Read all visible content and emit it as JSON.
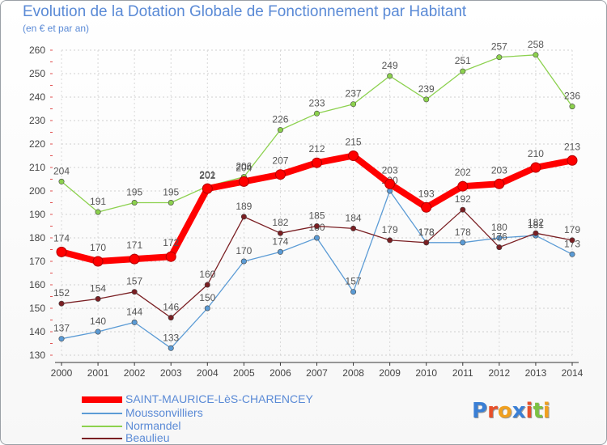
{
  "title": "Evolution de la Dotation Globale de Fonctionnement par Habitant",
  "subtitle": "(en € et par an)",
  "logo": {
    "text": "Proxiti",
    "letters": [
      {
        "ch": "P",
        "color": "#3a7fd5"
      },
      {
        "ch": "r",
        "color": "#e8502a"
      },
      {
        "ch": "o",
        "color": "#f0a020"
      },
      {
        "ch": "x",
        "color": "#3a7fd5"
      },
      {
        "ch": "i",
        "color": "#e8502a"
      },
      {
        "ch": "t",
        "color": "#7cc243"
      },
      {
        "ch": "i",
        "color": "#f0a020"
      }
    ]
  },
  "chart_data": {
    "type": "line",
    "x": [
      "2000",
      "2001",
      "2002",
      "2003",
      "2004",
      "2005",
      "2006",
      "2007",
      "2008",
      "2009",
      "2010",
      "2011",
      "2012",
      "2013",
      "2014"
    ],
    "ylim": [
      130,
      260
    ],
    "yticks": [
      130,
      140,
      150,
      160,
      170,
      180,
      190,
      200,
      210,
      220,
      230,
      240,
      250,
      260
    ],
    "grid": true,
    "legend_position": "bottom-left",
    "series": [
      {
        "name": "SAINT-MAURICE-LèS-CHARENCEY",
        "color": "#ff0000",
        "emphasis": true,
        "values": [
          174,
          170,
          171,
          172,
          201,
          204,
          207,
          212,
          215,
          203,
          193,
          202,
          203,
          210,
          213
        ],
        "labels": [
          "174",
          "170",
          "171",
          "172",
          "201",
          "204",
          "207",
          "212",
          "215",
          "203",
          "193",
          "202",
          "203",
          "210",
          "213"
        ]
      },
      {
        "name": "Moussonvilliers",
        "color": "#5b9bd5",
        "values": [
          137,
          140,
          144,
          133,
          150,
          170,
          174,
          180,
          157,
          200,
          178,
          178,
          180,
          181,
          173
        ],
        "labels": [
          "137",
          "140",
          "144",
          "133",
          "150",
          "170",
          "174",
          "180",
          "157",
          "200",
          "178",
          "178",
          "180",
          "181",
          "173"
        ]
      },
      {
        "name": "Normandel",
        "color": "#8cd14e",
        "values": [
          204,
          191,
          195,
          195,
          202,
          206,
          226,
          233,
          237,
          249,
          239,
          251,
          257,
          258,
          236
        ],
        "labels": [
          "204",
          "191",
          "195",
          "195",
          "202",
          "206",
          "226",
          "233",
          "237",
          "249",
          "239",
          "251",
          "257",
          "258",
          "236"
        ]
      },
      {
        "name": "Beaulieu",
        "color": "#7a1f23",
        "values": [
          152,
          154,
          157,
          146,
          160,
          189,
          182,
          185,
          184,
          179,
          178,
          192,
          176,
          182,
          179
        ],
        "labels": [
          "152",
          "154",
          "157",
          "146",
          "160",
          "189",
          "182",
          "185",
          "184",
          "179",
          "178",
          "192",
          "176",
          "182",
          "179"
        ]
      }
    ]
  }
}
